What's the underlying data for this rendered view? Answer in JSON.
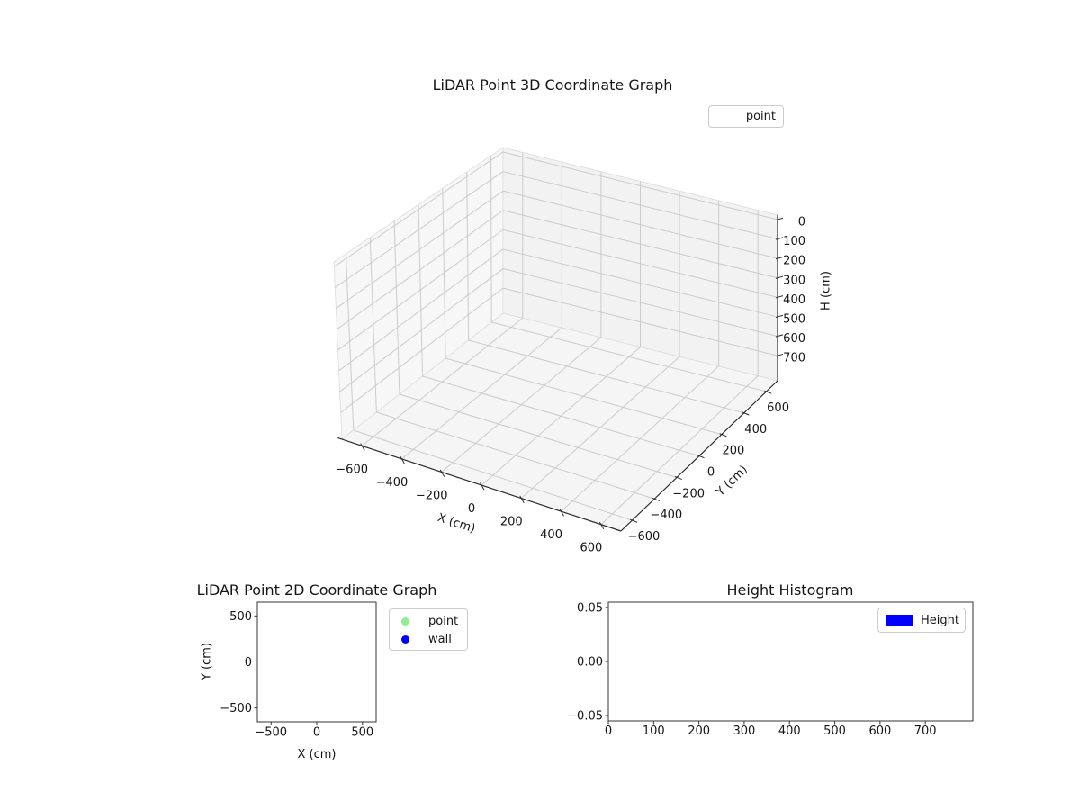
{
  "figure": {
    "background": "#ffffff"
  },
  "chart_data": [
    {
      "id": "lidar-3d",
      "type": "scatter",
      "projection": "3d",
      "title": "LiDAR Point 3D Coordinate Graph",
      "xlabel": "X (cm)",
      "ylabel": "Y (cm)",
      "zlabel": "H (cm)",
      "x_ticks": [
        -600,
        -400,
        -200,
        0,
        200,
        400,
        600
      ],
      "y_ticks": [
        -600,
        -400,
        -200,
        0,
        200,
        400,
        600
      ],
      "z_ticks": [
        0,
        100,
        200,
        300,
        400,
        500,
        600,
        700
      ],
      "xlim": [
        -700,
        700
      ],
      "ylim": [
        -700,
        700
      ],
      "zlim": [
        -23,
        829
      ],
      "z_axis_inverted": true,
      "grid": true,
      "legend": [
        "point"
      ],
      "legend_position": "upper right (outside axes)",
      "points": []
    },
    {
      "id": "lidar-2d",
      "type": "scatter",
      "title": "LiDAR Point 2D Coordinate Graph",
      "xlabel": "X (cm)",
      "ylabel": "Y (cm)",
      "x_ticks": [
        -500,
        0,
        500
      ],
      "y_ticks": [
        500,
        0,
        -500
      ],
      "xlim": [
        -650,
        650
      ],
      "ylim": [
        -650,
        650
      ],
      "grid": false,
      "legend_position": "right of axes",
      "series": [
        {
          "name": "point",
          "color": "#90ee90",
          "marker": "circle",
          "points": []
        },
        {
          "name": "wall",
          "color": "#0000ff",
          "marker": "circle",
          "points": []
        }
      ]
    },
    {
      "id": "height-histogram",
      "type": "bar",
      "title": "Height Histogram",
      "xlabel": "",
      "ylabel": "",
      "x_ticks": [
        0,
        100,
        200,
        300,
        400,
        500,
        600,
        700
      ],
      "y_ticks": [
        0.05,
        0,
        -0.05
      ],
      "y_tick_labels": [
        "0.05",
        "0.00",
        "−0.05"
      ],
      "xlim": [
        0,
        805
      ],
      "ylim": [
        -0.055,
        0.055
      ],
      "grid": false,
      "legend_position": "upper right (inside axes)",
      "series": [
        {
          "name": "Height",
          "color": "#0000ff",
          "values": []
        }
      ]
    }
  ]
}
